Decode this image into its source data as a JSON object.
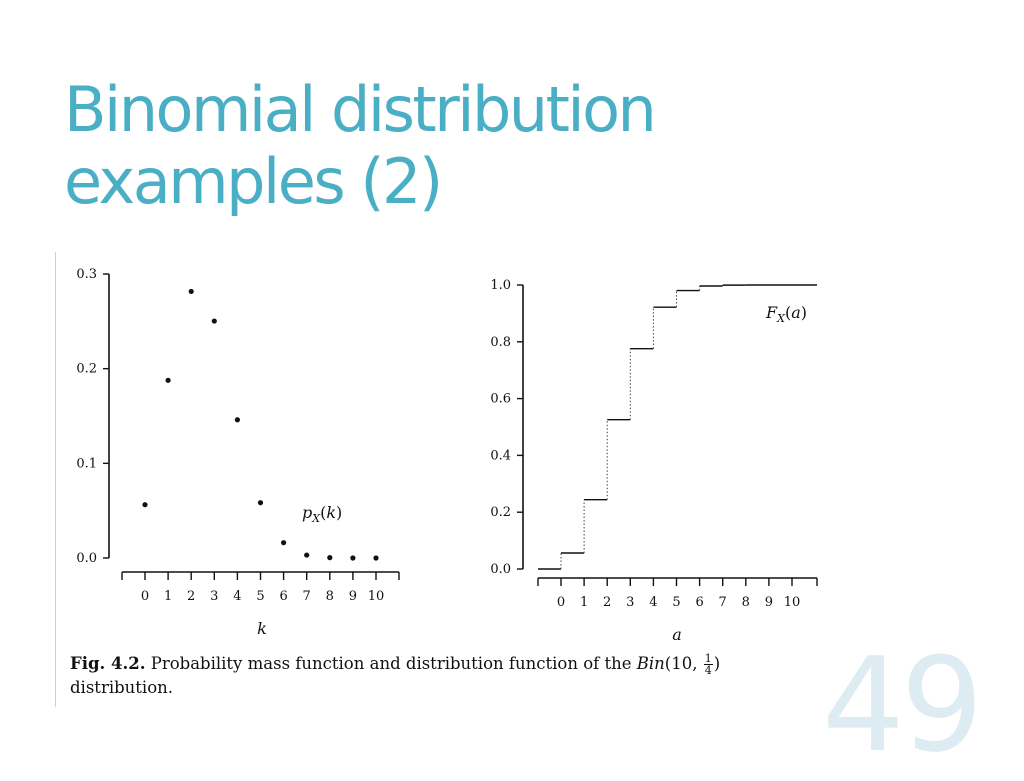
{
  "title": {
    "line1": "Binomial distribution",
    "line2": "examples (2)"
  },
  "caption": {
    "fig_label": "Fig. 4.2.",
    "text": " Probability mass function and distribution function of the ",
    "dist_name": "Bin",
    "dist_params": "(10, ",
    "frac_num": "1",
    "frac_den": "4",
    "close": ")",
    "line2": "distribution."
  },
  "slide_number": "49",
  "chart_data": [
    {
      "type": "scatter",
      "annotation": "p_X(k)",
      "xlabel": "k",
      "ylabel": "",
      "x": [
        0,
        1,
        2,
        3,
        4,
        5,
        6,
        7,
        8,
        9,
        10
      ],
      "y": [
        0.0563,
        0.1877,
        0.2816,
        0.2503,
        0.146,
        0.0584,
        0.0162,
        0.0031,
        0.0004,
        0.0,
        0.0
      ],
      "xticks": [
        "0",
        "1",
        "2",
        "3",
        "4",
        "5",
        "6",
        "7",
        "8",
        "9",
        "10"
      ],
      "yticks": [
        "0.0",
        "0.1",
        "0.2",
        "0.3"
      ],
      "ytick_values": [
        0.0,
        0.1,
        0.2,
        0.3
      ],
      "ylim": [
        0,
        0.3
      ],
      "grid": false
    },
    {
      "type": "line",
      "style": "step",
      "annotation": "F_X(a)",
      "xlabel": "a",
      "ylabel": "",
      "x": [
        0,
        1,
        2,
        3,
        4,
        5,
        6,
        7,
        8,
        9,
        10
      ],
      "y": [
        0.0563,
        0.244,
        0.5256,
        0.7759,
        0.9219,
        0.9803,
        0.9965,
        0.9996,
        1.0,
        1.0,
        1.0
      ],
      "xticks": [
        "0",
        "1",
        "2",
        "3",
        "4",
        "5",
        "6",
        "7",
        "8",
        "9",
        "10"
      ],
      "yticks": [
        "0.0",
        "0.2",
        "0.4",
        "0.6",
        "0.8",
        "1.0"
      ],
      "ytick_values": [
        0.0,
        0.2,
        0.4,
        0.6,
        0.8,
        1.0
      ],
      "ylim": [
        0,
        1.0
      ],
      "grid": false
    }
  ]
}
